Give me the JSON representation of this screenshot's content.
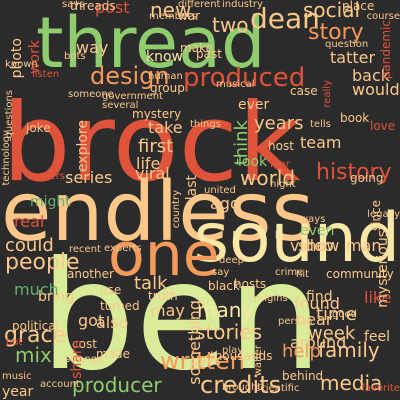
{
  "palette": {
    "background": "#2b2b2b",
    "red": "#e0533b",
    "orange": "#f59a5b",
    "peach": "#fbc88a",
    "cream": "#fbe8a6",
    "lightgreen": "#d8ec9a",
    "green": "#8ecc6e",
    "teal": "#63b06e",
    "darkred": "#c9402f"
  },
  "words": [
    {
      "text": "brock",
      "color": "red"
    },
    {
      "text": "ben",
      "color": "lightgreen"
    },
    {
      "text": "endless",
      "color": "peach"
    },
    {
      "text": "thread",
      "color": "green"
    },
    {
      "text": "sound",
      "color": "cream"
    },
    {
      "text": "one",
      "color": "orange"
    },
    {
      "text": "dean",
      "color": "peach"
    },
    {
      "text": "story",
      "color": "orange"
    },
    {
      "text": "social",
      "color": "peach"
    },
    {
      "text": "produced",
      "color": "red"
    },
    {
      "text": "design",
      "color": "orange"
    },
    {
      "text": "history",
      "color": "red"
    },
    {
      "text": "world",
      "color": "peach"
    },
    {
      "text": "years",
      "color": "peach"
    },
    {
      "text": "people",
      "color": "peach"
    },
    {
      "text": "credits",
      "color": "peach"
    },
    {
      "text": "written",
      "color": "orange"
    },
    {
      "text": "producer",
      "color": "green"
    },
    {
      "text": "grace",
      "color": "peach"
    },
    {
      "text": "media",
      "color": "peach"
    },
    {
      "text": "many",
      "color": "cream"
    },
    {
      "text": "stories",
      "color": "peach"
    },
    {
      "text": "new",
      "color": "peach"
    },
    {
      "text": "two",
      "color": "peach"
    },
    {
      "text": "post",
      "color": "red"
    },
    {
      "text": "way",
      "color": "peach"
    },
    {
      "text": "know",
      "color": "cream"
    },
    {
      "text": "first",
      "color": "peach"
    },
    {
      "text": "life",
      "color": "peach"
    },
    {
      "text": "series",
      "color": "peach"
    },
    {
      "text": "viral",
      "color": "peach"
    },
    {
      "text": "talk",
      "color": "peach"
    },
    {
      "text": "could",
      "color": "peach"
    },
    {
      "text": "real",
      "color": "red"
    },
    {
      "text": "much",
      "color": "teal"
    },
    {
      "text": "mix",
      "color": "green"
    },
    {
      "text": "got",
      "color": "peach"
    },
    {
      "text": "also",
      "color": "peach"
    },
    {
      "text": "may",
      "color": "peach"
    },
    {
      "text": "time",
      "color": "peach"
    },
    {
      "text": "week",
      "color": "peach"
    },
    {
      "text": "family",
      "color": "peach"
    },
    {
      "text": "around",
      "color": "peach"
    },
    {
      "text": "hear",
      "color": "peach"
    },
    {
      "text": "found",
      "color": "peach"
    },
    {
      "text": "help",
      "color": "orange"
    },
    {
      "text": "video",
      "color": "peach"
    },
    {
      "text": "like",
      "color": "red"
    },
    {
      "text": "back",
      "color": "peach"
    },
    {
      "text": "would",
      "color": "peach"
    },
    {
      "text": "tatter",
      "color": "peach"
    },
    {
      "text": "team",
      "color": "peach"
    },
    {
      "text": "take",
      "color": "peach"
    },
    {
      "text": "explore",
      "color": "peach"
    },
    {
      "text": "last",
      "color": "peach"
    },
    {
      "text": "think",
      "color": "green"
    },
    {
      "text": "something",
      "color": "peach"
    },
    {
      "text": "ago",
      "color": "peach"
    },
    {
      "text": "show",
      "color": "peach"
    },
    {
      "text": "man",
      "color": "peach"
    },
    {
      "text": "even",
      "color": "green"
    },
    {
      "text": "might",
      "color": "teal"
    },
    {
      "text": "year",
      "color": "peach"
    },
    {
      "text": "bring",
      "color": "peach"
    },
    {
      "text": "photo",
      "color": "peach"
    },
    {
      "text": "work",
      "color": "red"
    },
    {
      "text": "look",
      "color": "green"
    },
    {
      "text": "find",
      "color": "peach"
    },
    {
      "text": "feel",
      "color": "peach"
    },
    {
      "text": "mysterious",
      "color": "peach"
    },
    {
      "text": "going",
      "color": "peach"
    },
    {
      "text": "ever",
      "color": "peach"
    },
    {
      "text": "community",
      "color": "peach"
    },
    {
      "text": "since",
      "color": "peach"
    },
    {
      "text": "hosts",
      "color": "peach"
    },
    {
      "text": "black",
      "color": "peach"
    },
    {
      "text": "truth",
      "color": "peach"
    },
    {
      "text": "made",
      "color": "peach"
    },
    {
      "text": "another",
      "color": "peach"
    },
    {
      "text": "use",
      "color": "peach"
    },
    {
      "text": "turned",
      "color": "peach"
    },
    {
      "text": "cost",
      "color": "peach"
    },
    {
      "text": "yes",
      "color": "peach"
    },
    {
      "text": "share",
      "color": "red"
    },
    {
      "text": "political",
      "color": "peach"
    },
    {
      "text": "behind",
      "color": "peach"
    },
    {
      "text": "thousands",
      "color": "peach"
    },
    {
      "text": "threads",
      "color": "peach"
    },
    {
      "text": "members",
      "color": "peach"
    },
    {
      "text": "different",
      "color": "peach"
    },
    {
      "text": "war",
      "color": "peach"
    },
    {
      "text": "place",
      "color": "peach"
    },
    {
      "text": "question",
      "color": "peach"
    },
    {
      "text": "make",
      "color": "peach"
    },
    {
      "text": "past",
      "color": "peach"
    },
    {
      "text": "human",
      "color": "peach"
    },
    {
      "text": "group",
      "color": "peach"
    },
    {
      "text": "mystery",
      "color": "peach"
    },
    {
      "text": "things",
      "color": "peach"
    },
    {
      "text": "tells",
      "color": "peach"
    },
    {
      "text": "host",
      "color": "peach"
    },
    {
      "text": "joke",
      "color": "peach"
    },
    {
      "text": "listen",
      "color": "red"
    },
    {
      "text": "users",
      "color": "red"
    },
    {
      "text": "someone",
      "color": "peach"
    },
    {
      "text": "case",
      "color": "peach"
    },
    {
      "text": "love",
      "color": "red"
    },
    {
      "text": "book",
      "color": "peach"
    },
    {
      "text": "good",
      "color": "peach"
    },
    {
      "text": "play",
      "color": "peach"
    },
    {
      "text": "music",
      "color": "peach"
    },
    {
      "text": "strange",
      "color": "peach"
    },
    {
      "text": "account",
      "color": "peach"
    },
    {
      "text": "brought",
      "color": "peach"
    },
    {
      "text": "course",
      "color": "peach"
    },
    {
      "text": "pandemic",
      "color": "red"
    },
    {
      "text": "bot",
      "color": "red"
    },
    {
      "text": "favorite",
      "color": "red"
    },
    {
      "text": "scientific",
      "color": "peach"
    },
    {
      "text": "crime",
      "color": "peach"
    },
    {
      "text": "deep",
      "color": "peach"
    },
    {
      "text": "say",
      "color": "peach"
    },
    {
      "text": "legacy",
      "color": "peach"
    },
    {
      "text": "industry",
      "color": "peach"
    },
    {
      "text": "musical",
      "color": "peach"
    },
    {
      "text": "government",
      "color": "peach"
    },
    {
      "text": "several",
      "color": "peach"
    },
    {
      "text": "known",
      "color": "peach"
    },
    {
      "text": "says",
      "color": "peach"
    },
    {
      "text": "experts",
      "color": "peach"
    },
    {
      "text": "recent",
      "color": "peach"
    },
    {
      "text": "person",
      "color": "peach"
    },
    {
      "text": "origins",
      "color": "peach"
    },
    {
      "text": "country",
      "color": "peach"
    },
    {
      "text": "united",
      "color": "peach"
    },
    {
      "text": "technology",
      "color": "peach"
    },
    {
      "text": "questions",
      "color": "peach"
    },
    {
      "text": "really",
      "color": "red"
    },
    {
      "text": "fear",
      "color": "red"
    },
    {
      "text": "ways",
      "color": "peach"
    },
    {
      "text": "night",
      "color": "peach"
    },
    {
      "text": "walter",
      "color": "peach"
    },
    {
      "text": "hit",
      "color": "peach"
    },
    {
      "text": "bots",
      "color": "peach"
    }
  ]
}
